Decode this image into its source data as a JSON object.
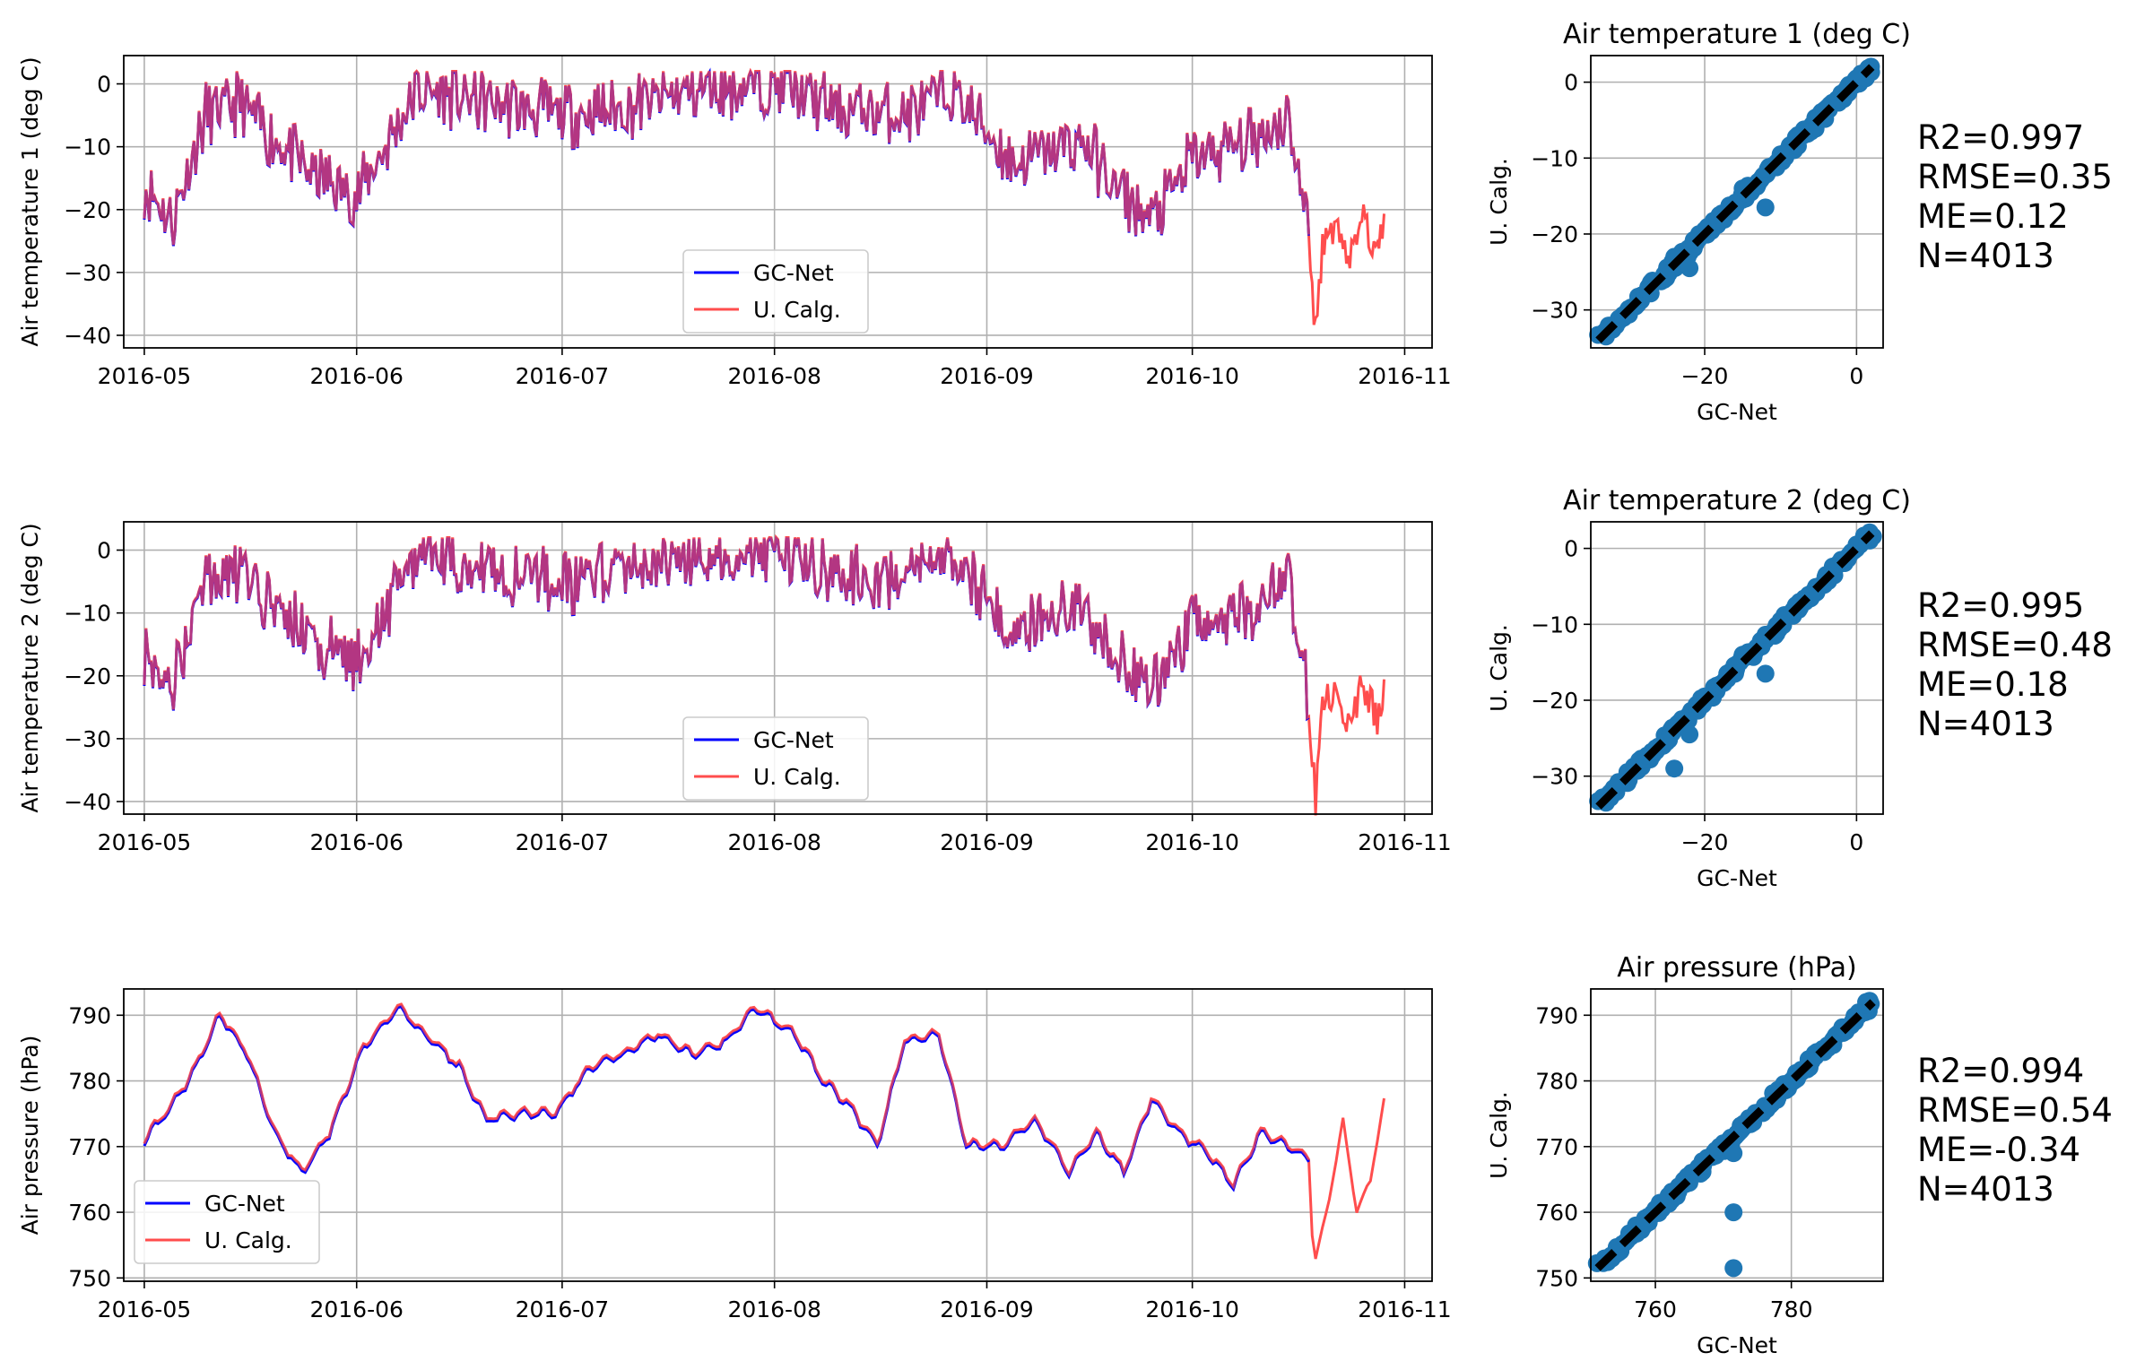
{
  "legend_labels": {
    "gcnet": "GC-Net",
    "calg": "U. Calg."
  },
  "colors": {
    "gcnet": "#0000ff",
    "calg": "#ff4d4d",
    "overlap": "#b3004d",
    "scatter": "#1f77b4",
    "line": "#000000",
    "grid": "#b0b0b0"
  },
  "chart_data": [
    {
      "type": "line",
      "ylabel": "Air temperature 1 (deg C)",
      "xlabel": "",
      "x_ticks": [
        "2016-05",
        "2016-06",
        "2016-07",
        "2016-08",
        "2016-09",
        "2016-10",
        "2016-11"
      ],
      "y_ticks": [
        0,
        -10,
        -20,
        -30,
        -40
      ],
      "xlim": [
        "2016-04-28",
        "2016-11-05"
      ],
      "ylim": [
        -42,
        4.5
      ],
      "legend": "lower center",
      "grid": true,
      "series": [
        {
          "name": "GC-Net",
          "x": [
            "2016-05-01",
            "2016-05-05",
            "2016-05-10",
            "2016-05-15",
            "2016-05-20",
            "2016-05-25",
            "2016-06-01",
            "2016-06-10",
            "2016-06-20",
            "2016-07-01",
            "2016-07-10",
            "2016-07-20",
            "2016-08-01",
            "2016-08-10",
            "2016-08-20",
            "2016-08-27",
            "2016-09-05",
            "2016-09-15",
            "2016-09-20",
            "2016-09-25",
            "2016-10-01",
            "2016-10-10",
            "2016-10-15",
            "2016-10-18"
          ],
          "values": [
            -16,
            -22,
            -5,
            -3,
            -9,
            -14,
            -18,
            -1,
            -3,
            -5,
            -4,
            -1,
            0,
            -4,
            -5,
            -1,
            -13,
            -9,
            -17,
            -22,
            -12,
            -9,
            -5,
            -24
          ]
        },
        {
          "name": "U. Calg.",
          "x": [
            "2016-05-01",
            "2016-05-05",
            "2016-05-10",
            "2016-05-15",
            "2016-05-20",
            "2016-05-25",
            "2016-06-01",
            "2016-06-10",
            "2016-06-20",
            "2016-07-01",
            "2016-07-10",
            "2016-07-20",
            "2016-08-01",
            "2016-08-10",
            "2016-08-20",
            "2016-08-27",
            "2016-09-05",
            "2016-09-15",
            "2016-09-20",
            "2016-09-25",
            "2016-10-01",
            "2016-10-10",
            "2016-10-15",
            "2016-10-18",
            "2016-10-19",
            "2016-10-20",
            "2016-10-22",
            "2016-10-24",
            "2016-10-26",
            "2016-10-28",
            "2016-10-29"
          ],
          "values": [
            -16,
            -22,
            -5,
            -3,
            -9,
            -14,
            -18,
            -1,
            -3,
            -5,
            -4,
            -1,
            0,
            -4,
            -5,
            -1,
            -13,
            -9,
            -17,
            -22,
            -12,
            -9,
            -5,
            -24,
            -40,
            -25,
            -22,
            -28,
            -21,
            -27,
            -22
          ]
        }
      ]
    },
    {
      "type": "scatter",
      "title": "Air temperature 1 (deg C)",
      "xlabel": "GC-Net",
      "ylabel": "U. Calg.",
      "x_ticks": [
        -20,
        0
      ],
      "y_ticks": [
        0,
        -10,
        -20,
        -30
      ],
      "xlim": [
        -35,
        3.5
      ],
      "ylim": [
        -35,
        3.5
      ],
      "grid": true,
      "points": {
        "x": [
          -33,
          -30,
          -25,
          -24,
          -22,
          -20,
          -16,
          -15,
          -12,
          -11,
          -10,
          -8,
          -6,
          -4,
          -2,
          0,
          1.5
        ],
        "y": [
          -33.5,
          -30.5,
          -25.5,
          -23,
          -24.5,
          -19.5,
          -16.5,
          -14,
          -16.5,
          -11,
          -9.5,
          -7.5,
          -6.5,
          -3.5,
          -1.5,
          0.5,
          1.5
        ]
      },
      "identity_line": [
        -34,
        2
      ]
    },
    {
      "type": "line",
      "ylabel": "Air temperature 2 (deg C)",
      "xlabel": "",
      "x_ticks": [
        "2016-05",
        "2016-06",
        "2016-07",
        "2016-08",
        "2016-09",
        "2016-10",
        "2016-11"
      ],
      "y_ticks": [
        0,
        -10,
        -20,
        -30,
        -40
      ],
      "xlim": [
        "2016-04-28",
        "2016-11-05"
      ],
      "ylim": [
        -42,
        4.5
      ],
      "legend": "lower center",
      "grid": true,
      "series": [
        {
          "name": "GC-Net",
          "x": [
            "2016-05-01",
            "2016-05-05",
            "2016-05-10",
            "2016-05-15",
            "2016-05-20",
            "2016-05-25",
            "2016-06-01",
            "2016-06-10",
            "2016-06-20",
            "2016-07-01",
            "2016-07-10",
            "2016-07-20",
            "2016-08-01",
            "2016-08-10",
            "2016-08-20",
            "2016-08-27",
            "2016-09-05",
            "2016-09-15",
            "2016-09-20",
            "2016-09-25",
            "2016-10-01",
            "2016-10-10",
            "2016-10-15",
            "2016-10-18"
          ],
          "values": [
            -16,
            -22,
            -5,
            -3,
            -9,
            -14,
            -18,
            -1,
            -3,
            -5,
            -4,
            -1,
            0,
            -4,
            -5,
            -1,
            -13,
            -9,
            -17,
            -22,
            -12,
            -9,
            -5,
            -24
          ]
        },
        {
          "name": "U. Calg.",
          "x": [
            "2016-05-01",
            "2016-05-05",
            "2016-05-10",
            "2016-05-15",
            "2016-05-20",
            "2016-05-25",
            "2016-06-01",
            "2016-06-10",
            "2016-06-20",
            "2016-07-01",
            "2016-07-10",
            "2016-07-20",
            "2016-08-01",
            "2016-08-10",
            "2016-08-20",
            "2016-08-27",
            "2016-09-05",
            "2016-09-15",
            "2016-09-20",
            "2016-09-25",
            "2016-10-01",
            "2016-10-10",
            "2016-10-15",
            "2016-10-18",
            "2016-10-19",
            "2016-10-20",
            "2016-10-22",
            "2016-10-24",
            "2016-10-26",
            "2016-10-28",
            "2016-10-29"
          ],
          "values": [
            -16,
            -22,
            -5,
            -3,
            -9,
            -14,
            -18,
            -1,
            -3,
            -5,
            -4,
            -1,
            0,
            -4,
            -5,
            -1,
            -13,
            -9,
            -17,
            -22,
            -12,
            -9,
            -5,
            -24,
            -40,
            -25,
            -22,
            -28,
            -21,
            -27,
            -22
          ]
        }
      ]
    },
    {
      "type": "scatter",
      "title": "Air temperature 2 (deg C)",
      "xlabel": "GC-Net",
      "ylabel": "U. Calg.",
      "x_ticks": [
        -20,
        0
      ],
      "y_ticks": [
        0,
        -10,
        -20,
        -30
      ],
      "xlim": [
        -35,
        3.5
      ],
      "ylim": [
        -35,
        3.5
      ],
      "grid": true,
      "points": {
        "x": [
          -33,
          -30,
          -25,
          -24,
          -23,
          -22,
          -20,
          -16,
          -15,
          -12,
          -11,
          -10,
          -8,
          -6,
          -4,
          -2,
          0,
          1.5
        ],
        "y": [
          -33.5,
          -30.5,
          -25.5,
          -29,
          -22.5,
          -24.5,
          -19.5,
          -16.5,
          -14,
          -16.5,
          -11,
          -9.5,
          -7.5,
          -6.5,
          -3.5,
          -1.5,
          0.5,
          1.5
        ]
      },
      "identity_line": [
        -34,
        2
      ]
    },
    {
      "type": "line",
      "ylabel": "Air pressure (hPa)",
      "xlabel": "",
      "x_ticks": [
        "2016-05",
        "2016-06",
        "2016-07",
        "2016-08",
        "2016-09",
        "2016-10",
        "2016-11"
      ],
      "y_ticks": [
        790,
        780,
        770,
        760,
        750
      ],
      "xlim": [
        "2016-04-28",
        "2016-11-05"
      ],
      "ylim": [
        749.5,
        794
      ],
      "legend": "lower left",
      "grid": true,
      "series": [
        {
          "name": "GC-Net",
          "x": [
            "2016-05-01",
            "2016-05-05",
            "2016-05-08",
            "2016-05-12",
            "2016-05-16",
            "2016-05-20",
            "2016-05-24",
            "2016-05-28",
            "2016-06-02",
            "2016-06-07",
            "2016-06-12",
            "2016-06-16",
            "2016-06-20",
            "2016-06-25",
            "2016-06-30",
            "2016-07-05",
            "2016-07-10",
            "2016-07-15",
            "2016-07-20",
            "2016-07-25",
            "2016-07-29",
            "2016-08-04",
            "2016-08-08",
            "2016-08-12",
            "2016-08-16",
            "2016-08-20",
            "2016-08-25",
            "2016-08-29",
            "2016-09-03",
            "2016-09-08",
            "2016-09-13",
            "2016-09-17",
            "2016-09-21",
            "2016-09-25",
            "2016-09-29",
            "2016-10-03",
            "2016-10-07",
            "2016-10-11",
            "2016-10-15",
            "2016-10-18"
          ],
          "values": [
            771,
            776,
            781,
            790,
            784,
            772,
            766,
            772,
            785,
            791,
            786,
            782,
            774,
            775,
            775,
            782,
            784,
            787,
            784,
            786,
            791,
            787,
            780,
            776,
            770,
            786,
            787,
            770,
            770,
            774,
            766,
            772,
            766,
            777,
            772,
            769,
            764,
            772,
            770,
            768
          ]
        },
        {
          "name": "U. Calg.",
          "x": [
            "2016-05-01",
            "2016-05-05",
            "2016-05-08",
            "2016-05-12",
            "2016-05-16",
            "2016-05-20",
            "2016-05-24",
            "2016-05-28",
            "2016-06-02",
            "2016-06-07",
            "2016-06-12",
            "2016-06-16",
            "2016-06-20",
            "2016-06-25",
            "2016-06-30",
            "2016-07-05",
            "2016-07-10",
            "2016-07-15",
            "2016-07-20",
            "2016-07-25",
            "2016-07-29",
            "2016-08-04",
            "2016-08-08",
            "2016-08-12",
            "2016-08-16",
            "2016-08-20",
            "2016-08-25",
            "2016-08-29",
            "2016-09-03",
            "2016-09-08",
            "2016-09-13",
            "2016-09-17",
            "2016-09-21",
            "2016-09-25",
            "2016-09-29",
            "2016-10-03",
            "2016-10-07",
            "2016-10-11",
            "2016-10-14",
            "2016-10-15",
            "2016-10-17",
            "2016-10-19",
            "2016-10-21",
            "2016-10-23",
            "2016-10-25",
            "2016-10-27",
            "2016-10-29"
          ],
          "values": [
            771,
            776,
            781,
            790,
            784,
            772,
            766,
            772,
            785,
            791,
            786,
            782,
            774,
            775,
            775,
            782,
            784,
            787,
            784,
            786,
            791,
            787,
            780,
            776,
            770,
            786,
            787,
            770,
            770,
            774,
            766,
            772,
            766,
            777,
            772,
            769,
            764,
            772,
            770,
            751.5,
            768,
            753,
            762,
            774,
            760,
            765,
            777
          ]
        }
      ]
    },
    {
      "type": "scatter",
      "title": "Air pressure (hPa)",
      "xlabel": "GC-Net",
      "ylabel": "U. Calg.",
      "x_ticks": [
        760,
        780
      ],
      "y_ticks": [
        790,
        780,
        770,
        760,
        750
      ],
      "xlim": [
        750.5,
        793.5
      ],
      "ylim": [
        749.5,
        794
      ],
      "grid": true,
      "points": {
        "x": [
          763,
          765,
          767,
          770,
          772,
          773,
          775,
          778,
          780,
          783,
          786,
          789,
          791,
          771.5,
          771.5,
          771.5
        ],
        "y": [
          763,
          764.5,
          767,
          770.5,
          772,
          773.5,
          775,
          777.5,
          780,
          783,
          786,
          789,
          792,
          769,
          760,
          751.5
        ]
      },
      "identity_line": [
        751.5,
        792
      ]
    }
  ],
  "stats": [
    {
      "r2": "R2=0.997",
      "rmse": "RMSE=0.35",
      "me": "ME=0.12",
      "n": "N=4013"
    },
    {
      "r2": "R2=0.995",
      "rmse": "RMSE=0.48",
      "me": "ME=0.18",
      "n": "N=4013"
    },
    {
      "r2": "R2=0.994",
      "rmse": "RMSE=0.54",
      "me": "ME=-0.34",
      "n": "N=4013"
    }
  ]
}
